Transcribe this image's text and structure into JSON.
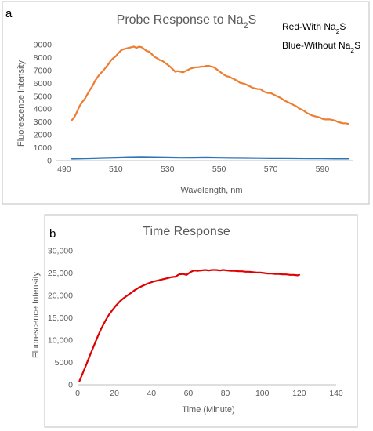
{
  "chart_data": [
    {
      "panel_label": "a",
      "type": "line",
      "title": "Probe Response to Na",
      "title_sub": "2",
      "title_tail": "S",
      "xlabel": "Wavelength, nm",
      "ylabel": "Fluorescence Intensity",
      "xlim": [
        487,
        602
      ],
      "ylim": [
        0,
        9000
      ],
      "x_ticks": [
        490,
        510,
        530,
        550,
        570,
        590
      ],
      "y_ticks": [
        0,
        1000,
        2000,
        3000,
        4000,
        5000,
        6000,
        7000,
        8000,
        9000
      ],
      "grid": false,
      "legend_position": "top-right",
      "legend_lines": [
        {
          "text": "Red-With Na",
          "sub": "2",
          "tail": "S"
        },
        {
          "text": "Blue-Without Na",
          "sub": "2",
          "tail": "S"
        }
      ],
      "series": [
        {
          "color": "#ed7d31",
          "x": [
            493,
            494,
            495,
            496,
            497,
            498,
            499,
            500,
            501,
            502,
            503,
            504,
            505,
            506,
            507,
            508,
            509,
            510,
            511,
            512,
            513,
            514,
            515,
            516,
            517,
            518,
            519,
            520,
            521,
            522,
            523,
            524,
            525,
            526,
            527,
            528,
            529,
            530,
            531,
            532,
            533,
            534,
            535,
            536,
            537,
            538,
            539,
            540,
            541,
            542,
            543,
            544,
            545,
            546,
            547,
            548,
            549,
            550,
            551,
            552,
            553,
            554,
            555,
            556,
            557,
            558,
            559,
            560,
            561,
            562,
            563,
            564,
            565,
            566,
            567,
            568,
            569,
            570,
            571,
            572,
            573,
            574,
            575,
            576,
            577,
            578,
            579,
            580,
            581,
            582,
            583,
            584,
            585,
            586,
            587,
            588,
            589,
            590,
            591,
            592,
            593,
            594,
            595,
            596,
            597,
            598,
            599,
            600
          ],
          "y": [
            3150,
            3400,
            3800,
            4250,
            4550,
            4800,
            5150,
            5500,
            5800,
            6200,
            6500,
            6750,
            6950,
            7200,
            7450,
            7750,
            7950,
            8100,
            8350,
            8550,
            8650,
            8700,
            8750,
            8800,
            8850,
            8750,
            8850,
            8800,
            8650,
            8500,
            8450,
            8250,
            8050,
            7950,
            7800,
            7750,
            7600,
            7450,
            7300,
            7100,
            6900,
            6950,
            6900,
            6850,
            6950,
            7050,
            7150,
            7200,
            7250,
            7250,
            7300,
            7300,
            7350,
            7350,
            7300,
            7250,
            7100,
            6950,
            6800,
            6650,
            6550,
            6500,
            6400,
            6300,
            6200,
            6050,
            6000,
            5950,
            5850,
            5750,
            5650,
            5600,
            5550,
            5550,
            5400,
            5300,
            5250,
            5250,
            5150,
            5050,
            4950,
            4850,
            4700,
            4600,
            4500,
            4400,
            4300,
            4200,
            4050,
            3950,
            3850,
            3700,
            3600,
            3500,
            3450,
            3400,
            3350,
            3250,
            3200,
            3200,
            3200,
            3150,
            3100,
            3000,
            2950,
            2900,
            2900,
            2850
          ]
        },
        {
          "color": "#2e75b6",
          "x": [
            493,
            500,
            505,
            510,
            515,
            520,
            525,
            530,
            535,
            540,
            545,
            550,
            555,
            560,
            565,
            570,
            575,
            580,
            585,
            590,
            595,
            600
          ],
          "y": [
            150,
            180,
            210,
            240,
            270,
            280,
            270,
            250,
            230,
            240,
            250,
            230,
            220,
            210,
            200,
            190,
            190,
            180,
            170,
            170,
            160,
            160
          ]
        }
      ]
    },
    {
      "panel_label": "b",
      "type": "line",
      "title": "Time Response",
      "xlabel": "Time (Minute)",
      "ylabel": "Fluorescence Intensity",
      "xlim": [
        0,
        140
      ],
      "ylim": [
        0,
        30000
      ],
      "x_ticks": [
        0,
        20,
        40,
        60,
        80,
        100,
        120,
        140
      ],
      "y_ticks": [
        "0",
        "5000",
        "10,000",
        "15,000",
        "20,000",
        "25,000",
        "30,000"
      ],
      "y_tick_values": [
        0,
        5000,
        10000,
        15000,
        20000,
        25000,
        30000
      ],
      "grid": false,
      "series": [
        {
          "color": "#e00000",
          "x": [
            1,
            3,
            5,
            7,
            9,
            11,
            13,
            15,
            17,
            19,
            21,
            23,
            25,
            27,
            29,
            31,
            33,
            35,
            37,
            39,
            41,
            43,
            45,
            47,
            49,
            51,
            53,
            55,
            57,
            59,
            61,
            63,
            65,
            67,
            69,
            71,
            73,
            75,
            77,
            79,
            81,
            83,
            85,
            87,
            89,
            91,
            93,
            95,
            97,
            99,
            101,
            103,
            105,
            107,
            109,
            111,
            113,
            115,
            117,
            119,
            120
          ],
          "y": [
            800,
            2800,
            4800,
            6900,
            8900,
            10900,
            12700,
            14300,
            15700,
            16800,
            17800,
            18700,
            19400,
            20000,
            20600,
            21200,
            21700,
            22100,
            22500,
            22800,
            23100,
            23300,
            23500,
            23700,
            23900,
            24100,
            24200,
            24700,
            24800,
            24600,
            25200,
            25600,
            25500,
            25600,
            25700,
            25600,
            25700,
            25700,
            25600,
            25700,
            25600,
            25500,
            25500,
            25400,
            25400,
            25300,
            25300,
            25200,
            25100,
            25100,
            25000,
            24900,
            24900,
            24800,
            24800,
            24700,
            24700,
            24600,
            24600,
            24500,
            24600
          ]
        }
      ]
    }
  ]
}
